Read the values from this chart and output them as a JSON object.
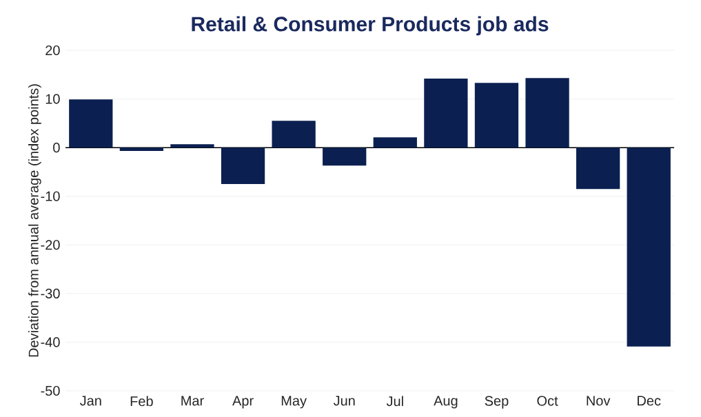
{
  "chart_data": {
    "type": "bar",
    "title": "Retail & Consumer Products job ads",
    "ylabel": "Deviation from annual average (index points)",
    "categories": [
      "Jan",
      "Feb",
      "Mar",
      "Apr",
      "May",
      "Jun",
      "Jul",
      "Aug",
      "Sep",
      "Oct",
      "Nov",
      "Dec"
    ],
    "values": [
      9.9,
      -0.7,
      0.7,
      -7.5,
      5.5,
      -3.7,
      2.1,
      14.2,
      13.3,
      14.3,
      -8.5,
      -40.9
    ],
    "color": "#0b2050",
    "ylim": [
      -50,
      20
    ],
    "yticks": [
      -50,
      -40,
      -30,
      -20,
      -10,
      0,
      10,
      20
    ],
    "grid": "y"
  }
}
